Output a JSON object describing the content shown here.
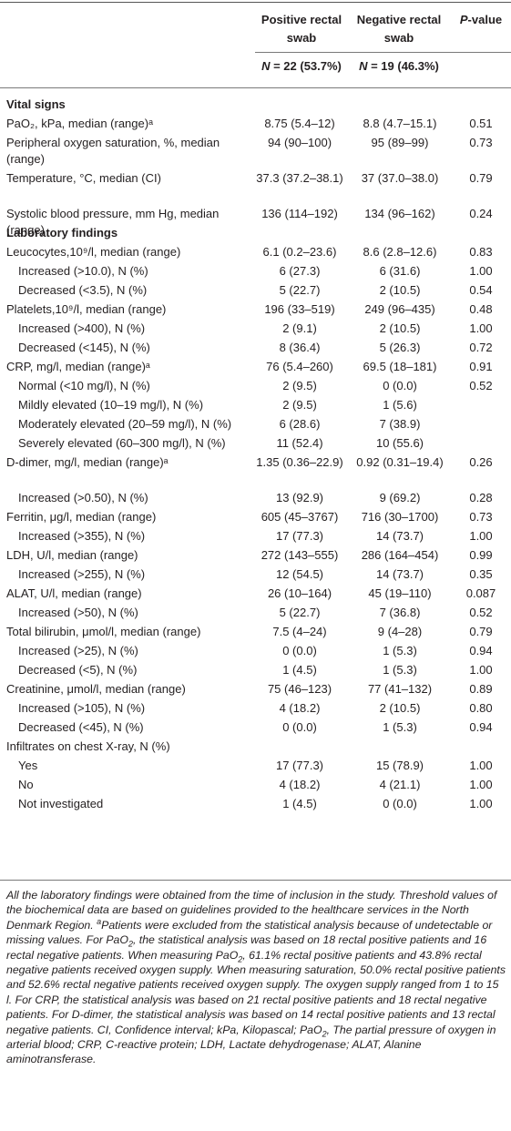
{
  "header": {
    "positive_label": "Positive rectal swab",
    "negative_label": "Negative rectal swab",
    "p_label_italic": "P",
    "p_label_rest": "-value",
    "n_italic": "N",
    "positive_n": " = 22 (53.7%)",
    "negative_n": " = 19 (46.3%)"
  },
  "rows": [
    {
      "label": "Vital signs",
      "type": "section",
      "top": 106
    },
    {
      "label": "PaO₂, kPa, median (range)ᵃ",
      "pos": "8.75 (5.4–12)",
      "neg": "8.8 (4.7–15.1)",
      "p": "0.51"
    },
    {
      "label": "Peripheral oxygen saturation, %, median (range)",
      "pos": "94 (90–100)",
      "neg": "95 (89–99)",
      "p": "0.73"
    },
    {
      "label": "Temperature, °C, median (CI)",
      "pos": "37.3 (37.2–38.1)",
      "neg": "37 (37.0–38.0)",
      "p": "0.79"
    },
    {
      "label": "Systolic blood pressure, mm Hg, median (range)",
      "pos": "136 (114–192)",
      "neg": "134 (96–162)",
      "p": "0.24"
    },
    {
      "label": "Laboratory findings",
      "type": "section"
    },
    {
      "label": "Leucocytes,10⁹/l, median (range)",
      "pos": "6.1 (0.2–23.6)",
      "neg": "8.6 (2.8–12.6)",
      "p": "0.83"
    },
    {
      "label": "Increased (>10.0), N (%)",
      "indent": true,
      "pos": "6 (27.3)",
      "neg": "6 (31.6)",
      "p": "1.00"
    },
    {
      "label": "Decreased (<3.5), N (%)",
      "indent": true,
      "pos": "5 (22.7)",
      "neg": "2 (10.5)",
      "p": "0.54"
    },
    {
      "label": "Platelets,10⁹/l, median (range)",
      "pos": "196 (33–519)",
      "neg": "249 (96–435)",
      "p": "0.48"
    },
    {
      "label": "Increased (>400), N (%)",
      "indent": true,
      "pos": "2 (9.1)",
      "neg": "2 (10.5)",
      "p": "1.00"
    },
    {
      "label": "Decreased (<145), N (%)",
      "indent": true,
      "pos": "8 (36.4)",
      "neg": "5 (26.3)",
      "p": "0.72"
    },
    {
      "label": "CRP, mg/l, median (range)ᵃ",
      "pos": "76 (5.4–260)",
      "neg": "69.5 (18–181)",
      "p": "0.91"
    },
    {
      "label": "Normal (<10 mg/l), N (%)",
      "indent": true,
      "pos": "2 (9.5)",
      "neg": "0 (0.0)",
      "p": "0.52"
    },
    {
      "label": "Mildly elevated (10–19 mg/l), N (%)",
      "indent": true,
      "pos": "2 (9.5)",
      "neg": "1 (5.6)",
      "p": ""
    },
    {
      "label": "Moderately elevated (20–59 mg/l), N (%)",
      "indent": true,
      "pos": "6 (28.6)",
      "neg": "7 (38.9)",
      "p": ""
    },
    {
      "label": "Severely elevated (60–300 mg/l), N (%)",
      "indent": true,
      "pos": "11 (52.4)",
      "neg": "10 (55.6)",
      "p": ""
    },
    {
      "label": "D-dimer, mg/l, median (range)ᵃ",
      "pos": "1.35 (0.36–22.9)",
      "neg": "0.92 (0.31–19.4)",
      "p": "0.26"
    },
    {
      "label": "Increased (>0.50), N (%)",
      "indent": true,
      "pos": "13 (92.9)",
      "neg": "9 (69.2)",
      "p": "0.28"
    },
    {
      "label": "Ferritin, μg/l, median (range)",
      "pos": "605 (45–3767)",
      "neg": "716 (30–1700)",
      "p": "0.73"
    },
    {
      "label": "Increased (>355), N (%)",
      "indent": true,
      "pos": "17 (77.3)",
      "neg": "14 (73.7)",
      "p": "1.00"
    },
    {
      "label": "LDH, U/l, median (range)",
      "pos": "272 (143–555)",
      "neg": "286 (164–454)",
      "p": "0.99"
    },
    {
      "label": "Increased (>255), N (%)",
      "indent": true,
      "pos": "12 (54.5)",
      "neg": "14 (73.7)",
      "p": "0.35"
    },
    {
      "label": "ALAT, U/l, median (range)",
      "pos": "26 (10–164)",
      "neg": "45 (19–110)",
      "p": "0.087"
    },
    {
      "label": "Increased (>50), N (%)",
      "indent": true,
      "pos": "5 (22.7)",
      "neg": "7 (36.8)",
      "p": "0.52"
    },
    {
      "label": "Total bilirubin, μmol/l, median (range)",
      "pos": "7.5 (4–24)",
      "neg": "9 (4–28)",
      "p": "0.79"
    },
    {
      "label": "Increased (>25), N (%)",
      "indent": true,
      "pos": "0 (0.0)",
      "neg": "1 (5.3)",
      "p": "0.94"
    },
    {
      "label": "Decreased (<5), N (%)",
      "indent": true,
      "pos": "1 (4.5)",
      "neg": "1 (5.3)",
      "p": "1.00"
    },
    {
      "label": "Creatinine, μmol/l, median (range)",
      "pos": "75 (46–123)",
      "neg": "77 (41–132)",
      "p": "0.89"
    },
    {
      "label": "Increased (>105), N (%)",
      "indent": true,
      "pos": "4 (18.2)",
      "neg": "2 (10.5)",
      "p": "0.80"
    },
    {
      "label": "Decreased (<45), N (%)",
      "indent": true,
      "pos": "0 (0.0)",
      "neg": "1 (5.3)",
      "p": "0.94"
    },
    {
      "label": "Infiltrates on chest X-ray, N (%)",
      "pos": "",
      "neg": "",
      "p": ""
    },
    {
      "label": "Yes",
      "indent": true,
      "pos": "17 (77.3)",
      "neg": "15 (78.9)",
      "p": "1.00"
    },
    {
      "label": "No",
      "indent": true,
      "pos": "4 (18.2)",
      "neg": "4 (21.1)",
      "p": "1.00"
    },
    {
      "label": "Not investigated",
      "indent": true,
      "pos": "1 (4.5)",
      "neg": "0 (0.0)",
      "p": "1.00"
    }
  ],
  "footnote": {
    "part1": "All the laboratory findings were obtained from the time of inclusion in the study. Threshold values of the biochemical data are based on guidelines provided to the healthcare services in the North Denmark Region. ",
    "sup_a": "a",
    "part2": "Patients were excluded from the statistical analysis because of undetectable or missing values. For PaO",
    "sub1": "2",
    "part3": ", the statistical analysis was based on 18 rectal positive patients and 16 rectal negative patients. When measuring PaO",
    "sub2": "2",
    "part4": ", 61.1% rectal positive patients and 43.8% rectal negative patients received oxygen supply. When measuring saturation, 50.0% rectal positive patients and 52.6% rectal negative patients received oxygen supply. The oxygen supply ranged from 1 to 15 l. For CRP, the statistical analysis was based on 21 rectal positive patients and 18 rectal negative patients. For D-dimer, the statistical analysis was based on 14 rectal positive patients and 13 rectal negative patients. CI, Confidence interval; kPa, Kilopascal; PaO",
    "sub3": "2",
    "part5": ", The partial pressure of oxygen in arterial blood; CRP, C-reactive protein; LDH, Lactate dehydrogenase; ALAT, Alanine aminotransferase."
  }
}
